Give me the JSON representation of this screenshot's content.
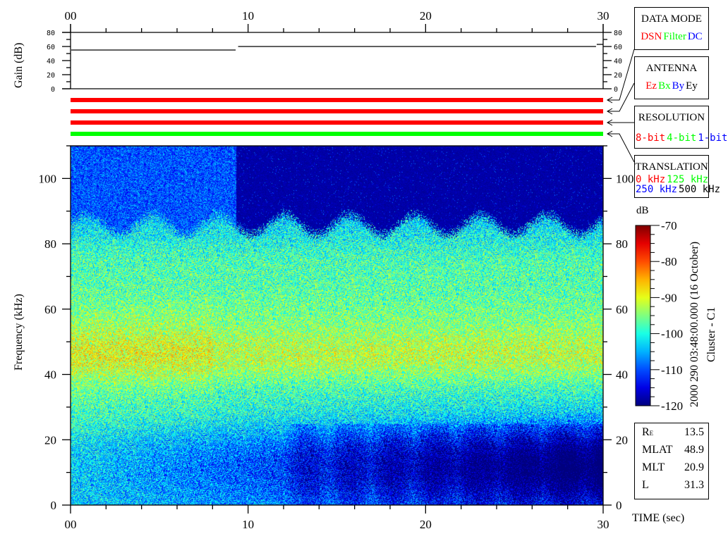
{
  "chart_data": {
    "type": "heatmap",
    "title": "",
    "xlabel": "TIME (sec)",
    "ylabel": "Frequency (kHz)",
    "xlim": [
      0,
      30
    ],
    "ylim": [
      0,
      110
    ],
    "x_ticks": [
      "00",
      "10",
      "20",
      "30"
    ],
    "y_ticks": [
      "0",
      "20",
      "40",
      "60",
      "80",
      "100"
    ],
    "colorbar": {
      "label": "dB",
      "range": [
        -120,
        -70
      ],
      "ticks": [
        "-70",
        "-80",
        "-90",
        "-100",
        "-110",
        "-120"
      ],
      "colormap": "jet"
    },
    "gain_panel": {
      "ylabel": "Gain (dB)",
      "ylim": [
        0,
        80
      ],
      "y_ticks": [
        "0",
        "20",
        "40",
        "60",
        "80"
      ],
      "segments": [
        {
          "t_start": 0,
          "t_end": 9.3,
          "gain": 55
        },
        {
          "t_start": 9.4,
          "t_end": 29.6,
          "gain": 60
        },
        {
          "t_start": 29.6,
          "t_end": 30,
          "gain": 63
        }
      ]
    },
    "status_bars": [
      {
        "name": "DATA MODE",
        "color": "#ff0000"
      },
      {
        "name": "ANTENNA",
        "color": "#ff0000"
      },
      {
        "name": "RESOLUTION",
        "color": "#ff0000"
      },
      {
        "name": "TRANSLATION",
        "color": "#00ff00"
      }
    ]
  },
  "legends": {
    "data_mode": {
      "title": "DATA MODE",
      "options": [
        {
          "label": "DSN",
          "color": "#ff0000"
        },
        {
          "label": "Filter",
          "color": "#00ff00"
        },
        {
          "label": "DC",
          "color": "#0000ff"
        }
      ]
    },
    "antenna": {
      "title": "ANTENNA",
      "options": [
        {
          "label": "Ez",
          "color": "#ff0000"
        },
        {
          "label": "Bx",
          "color": "#00ff00"
        },
        {
          "label": "By",
          "color": "#0000ff"
        },
        {
          "label": "Ey",
          "color": "#000000"
        }
      ]
    },
    "resolution": {
      "title": "RESOLUTION",
      "options": [
        {
          "label": "8-bit",
          "color": "#ff0000"
        },
        {
          "label": "4-bit",
          "color": "#00ff00"
        },
        {
          "label": "1-bit",
          "color": "#0000ff"
        }
      ]
    },
    "translation": {
      "title": "TRANSLATION",
      "options": [
        {
          "label": "0 kHz",
          "color": "#ff0000"
        },
        {
          "label": "125 kHz",
          "color": "#00ff00"
        },
        {
          "label": "250 kHz",
          "color": "#0000ff"
        },
        {
          "label": "500 kHz",
          "color": "#000000"
        }
      ]
    }
  },
  "timestamp": "2000 290 03:48:00.000 (16 October)",
  "spacecraft": "Cluster - C1",
  "ephemeris": [
    {
      "label": "R",
      "sub": "E",
      "value": "13.5"
    },
    {
      "label": "MLAT",
      "sub": "",
      "value": "48.9"
    },
    {
      "label": "MLT",
      "sub": "",
      "value": "20.9"
    },
    {
      "label": "L",
      "sub": "",
      "value": "31.3"
    }
  ]
}
